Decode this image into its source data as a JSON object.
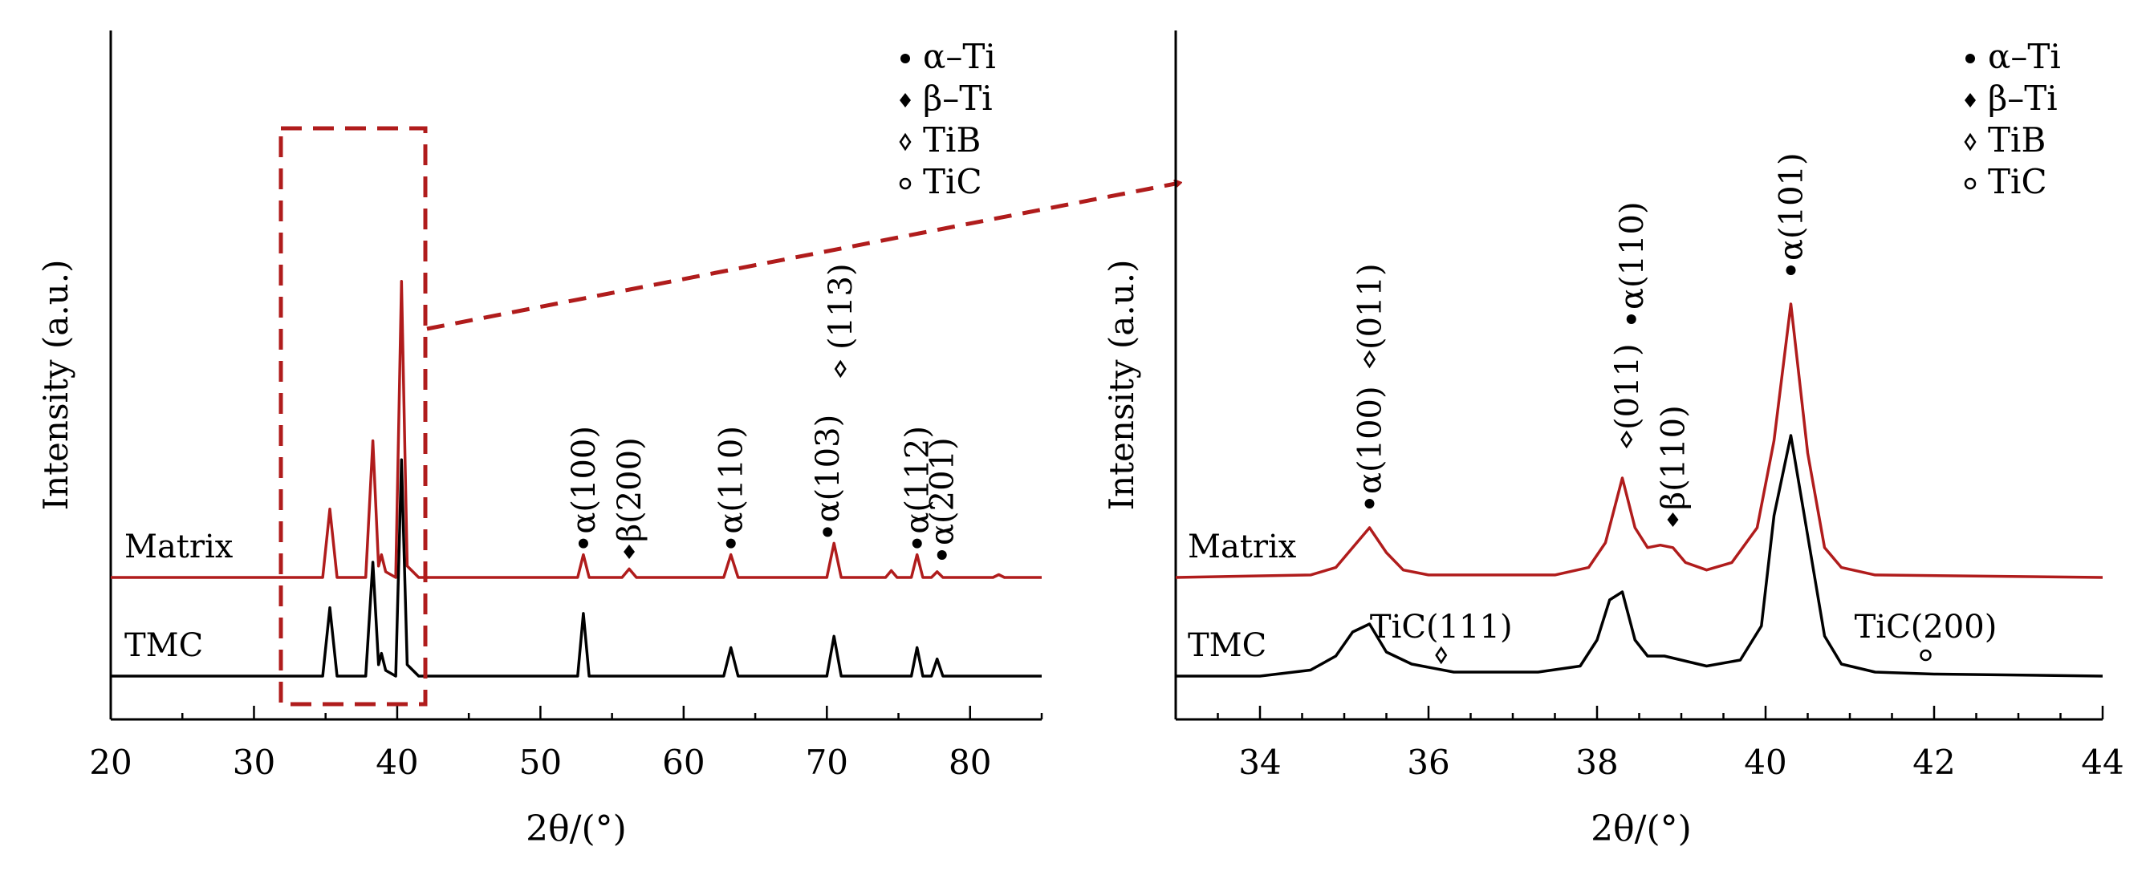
{
  "chart_data": [
    {
      "type": "line",
      "xlabel": "2θ/(°)",
      "ylabel": "Intensity (a.u.)",
      "xlim": [
        20,
        85
      ],
      "xticks": [
        "20",
        "30",
        "40",
        "50",
        "60",
        "70",
        "80"
      ],
      "series": [
        {
          "name": "Matrix",
          "color": "#b01c1c",
          "x": [
            20,
            34.8,
            35.3,
            35.8,
            37.8,
            38.3,
            38.7,
            38.9,
            39.2,
            39.9,
            40.3,
            40.7,
            41.5,
            52.6,
            53.0,
            53.4,
            55.7,
            56.2,
            56.7,
            62.8,
            63.3,
            63.8,
            70.0,
            70.5,
            71.0,
            74.1,
            74.5,
            74.9,
            75.9,
            76.3,
            76.7,
            77.3,
            77.7,
            78.1,
            81.6,
            82.0,
            82.4,
            85
          ],
          "y": [
            0,
            0,
            12,
            0,
            0,
            24,
            2,
            4,
            1,
            0,
            52,
            2,
            0,
            0,
            4,
            0,
            0,
            1.5,
            0,
            0,
            4,
            0,
            0,
            6,
            0,
            0,
            1.2,
            0,
            0,
            4,
            0,
            0,
            1,
            0,
            0,
            0.5,
            0,
            0
          ]
        },
        {
          "name": "TMC",
          "color": "#000000",
          "x": [
            20,
            34.8,
            35.3,
            35.8,
            37.8,
            38.3,
            38.7,
            38.9,
            39.2,
            39.9,
            40.3,
            40.7,
            41.5,
            52.6,
            53.0,
            53.4,
            62.8,
            63.3,
            63.8,
            70.0,
            70.5,
            71.0,
            75.9,
            76.3,
            76.7,
            77.3,
            77.7,
            78.1,
            85
          ],
          "y": [
            0,
            0,
            12,
            0,
            0,
            20,
            2,
            4,
            1,
            0,
            38,
            2,
            0,
            0,
            11,
            0,
            0,
            5,
            0,
            0,
            7,
            0,
            0,
            5,
            0,
            0,
            3,
            0,
            0
          ]
        }
      ],
      "legend": {
        "position": "top-right",
        "entries": [
          {
            "marker": "dot",
            "label": "α–Ti"
          },
          {
            "marker": "diamond-filled",
            "label": "β–Ti"
          },
          {
            "marker": "diamond-open",
            "label": "TiB"
          },
          {
            "marker": "circle-open",
            "label": "TiC"
          }
        ]
      },
      "series_labels": [
        "Matrix",
        "TMC"
      ],
      "annotations": [
        {
          "x": 53.0,
          "text": "α(100)",
          "marker": "dot"
        },
        {
          "x": 56.2,
          "text": "β(200)",
          "marker": "diamond-filled"
        },
        {
          "x": 63.3,
          "text": "α(110)",
          "marker": "dot"
        },
        {
          "x": 70.5,
          "text": "α(103)",
          "marker": "dot"
        },
        {
          "x": 70.5,
          "text": "(113)",
          "marker": "diamond-open"
        },
        {
          "x": 76.3,
          "text": "α(112)",
          "marker": "dot"
        },
        {
          "x": 77.7,
          "text": "α(201)",
          "marker": "dot"
        }
      ],
      "zoom_box_range": [
        32,
        42
      ]
    },
    {
      "type": "line",
      "xlabel": "2θ/(°)",
      "ylabel": "Intensity (a.u.)",
      "xlim": [
        33,
        44
      ],
      "xticks": [
        "34",
        "36",
        "38",
        "40",
        "42",
        "44"
      ],
      "series": [
        {
          "name": "Matrix",
          "color": "#b01c1c",
          "x": [
            33,
            34.6,
            34.9,
            35.1,
            35.3,
            35.5,
            35.7,
            36.0,
            37.5,
            37.9,
            38.1,
            38.3,
            38.45,
            38.6,
            38.75,
            38.9,
            39.05,
            39.3,
            39.6,
            39.9,
            40.1,
            40.3,
            40.5,
            40.7,
            40.9,
            41.3,
            44
          ],
          "y": [
            0,
            1,
            4,
            12,
            20,
            10,
            3,
            1,
            1,
            4,
            14,
            40,
            20,
            12,
            13,
            12,
            6,
            3,
            6,
            20,
            55,
            110,
            50,
            12,
            4,
            1,
            0
          ]
        },
        {
          "name": "TMC",
          "color": "#000000",
          "x": [
            33,
            34.0,
            34.6,
            34.9,
            35.1,
            35.3,
            35.5,
            35.8,
            36.3,
            37.3,
            37.8,
            38.0,
            38.15,
            38.3,
            38.45,
            38.6,
            38.8,
            39.0,
            39.3,
            39.7,
            39.95,
            40.1,
            40.3,
            40.5,
            40.7,
            40.9,
            41.3,
            42.0,
            44
          ],
          "y": [
            0,
            0,
            3,
            10,
            22,
            26,
            12,
            6,
            2,
            2,
            5,
            18,
            38,
            42,
            18,
            10,
            10,
            8,
            5,
            8,
            25,
            80,
            120,
            70,
            20,
            6,
            2,
            1,
            0
          ]
        }
      ],
      "legend": {
        "position": "top-right",
        "entries": [
          {
            "marker": "dot",
            "label": "α–Ti"
          },
          {
            "marker": "diamond-filled",
            "label": "β–Ti"
          },
          {
            "marker": "diamond-open",
            "label": "TiB"
          },
          {
            "marker": "circle-open",
            "label": "TiC"
          }
        ]
      },
      "series_labels": [
        "Matrix",
        "TMC"
      ],
      "annotations": [
        {
          "x": 35.3,
          "text": "α(100)",
          "marker": "dot"
        },
        {
          "x": 35.3,
          "text": "(011)",
          "marker": "diamond-open"
        },
        {
          "x": 38.35,
          "text": "(011)",
          "marker": "diamond-open"
        },
        {
          "x": 38.35,
          "text": "α(110)",
          "marker": "dot"
        },
        {
          "x": 38.9,
          "text": "β(110)",
          "marker": "diamond-filled"
        },
        {
          "x": 40.3,
          "text": "α(101)",
          "marker": "dot"
        }
      ],
      "tmc_annotations": [
        {
          "x": 36.15,
          "text": "TiC(111)",
          "marker": "diamond-open"
        },
        {
          "x": 41.9,
          "text": "TiC(200)",
          "marker": "circle-open"
        }
      ]
    }
  ]
}
